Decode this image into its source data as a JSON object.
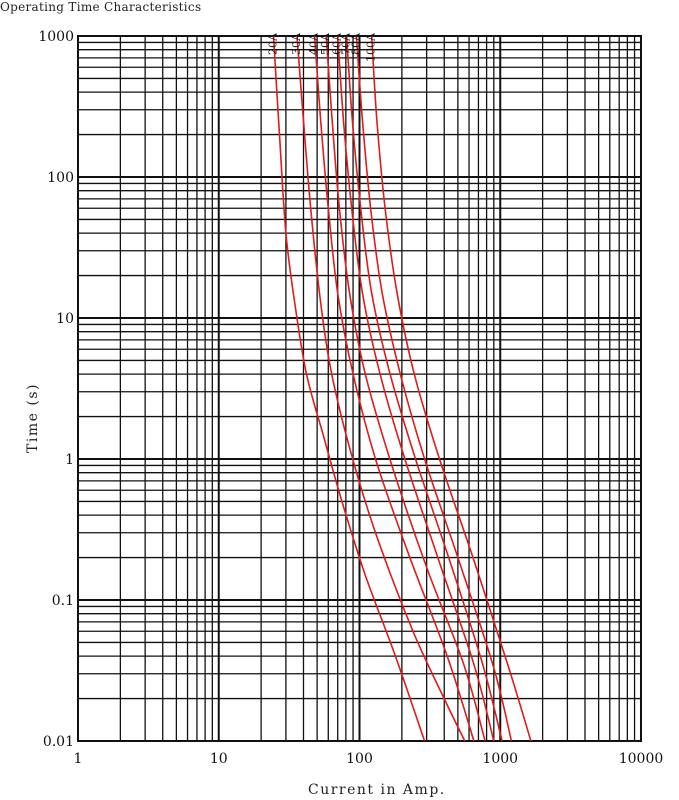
{
  "chart_data": {
    "type": "line",
    "title": "Operating Time Characteristics",
    "xlabel": "Current in Amp.",
    "ylabel": "Time (s)",
    "x_scale": "log",
    "y_scale": "log",
    "xlim": [
      1,
      10000
    ],
    "ylim": [
      0.01,
      1000
    ],
    "x_tick_labels": [
      "1",
      "10",
      "100",
      "1000",
      "10000"
    ],
    "y_tick_labels": [
      "0.01",
      "0.1",
      "1",
      "10",
      "100",
      "1000"
    ],
    "grid": true,
    "line_color": "#e11b1b",
    "series": [
      {
        "name": "20A",
        "points": [
          [
            24.5,
            1000
          ],
          [
            27,
            200
          ],
          [
            30,
            40
          ],
          [
            35,
            12
          ],
          [
            42,
            4
          ],
          [
            55,
            1.5
          ],
          [
            75,
            0.5
          ],
          [
            110,
            0.15
          ],
          [
            180,
            0.04
          ],
          [
            290,
            0.01
          ]
        ]
      },
      {
        "name": "30A",
        "points": [
          [
            36,
            1000
          ],
          [
            40,
            250
          ],
          [
            45,
            60
          ],
          [
            52,
            15
          ],
          [
            62,
            4.5
          ],
          [
            85,
            1.2
          ],
          [
            130,
            0.3
          ],
          [
            240,
            0.06
          ],
          [
            420,
            0.018
          ],
          [
            560,
            0.01
          ]
        ]
      },
      {
        "name": "40A",
        "points": [
          [
            48,
            1000
          ],
          [
            53,
            250
          ],
          [
            60,
            60
          ],
          [
            70,
            15
          ],
          [
            90,
            4
          ],
          [
            130,
            1
          ],
          [
            220,
            0.22
          ],
          [
            420,
            0.04
          ],
          [
            650,
            0.01
          ]
        ]
      },
      {
        "name": "50A",
        "points": [
          [
            58,
            1000
          ],
          [
            64,
            250
          ],
          [
            72,
            60
          ],
          [
            85,
            15
          ],
          [
            110,
            4
          ],
          [
            170,
            0.9
          ],
          [
            300,
            0.17
          ],
          [
            550,
            0.035
          ],
          [
            780,
            0.01
          ]
        ]
      },
      {
        "name": "60A",
        "points": [
          [
            70,
            1000
          ],
          [
            77,
            250
          ],
          [
            88,
            60
          ],
          [
            105,
            15
          ],
          [
            140,
            4
          ],
          [
            210,
            1
          ],
          [
            360,
            0.2
          ],
          [
            650,
            0.035
          ],
          [
            900,
            0.01
          ]
        ]
      },
      {
        "name": "70A",
        "points": [
          [
            81,
            1000
          ],
          [
            89,
            250
          ],
          [
            102,
            60
          ],
          [
            122,
            15
          ],
          [
            165,
            4
          ],
          [
            250,
            1
          ],
          [
            430,
            0.2
          ],
          [
            750,
            0.035
          ],
          [
            1030,
            0.01
          ]
        ]
      },
      {
        "name": "80A",
        "points": [
          [
            95,
            1000
          ],
          [
            105,
            250
          ],
          [
            120,
            60
          ],
          [
            145,
            15
          ],
          [
            195,
            4
          ],
          [
            290,
            1
          ],
          [
            500,
            0.2
          ],
          [
            900,
            0.033
          ],
          [
            1200,
            0.01
          ]
        ]
      },
      {
        "name": "100A",
        "points": [
          [
            122,
            1000
          ],
          [
            133,
            250
          ],
          [
            152,
            60
          ],
          [
            185,
            15
          ],
          [
            245,
            4
          ],
          [
            370,
            1
          ],
          [
            640,
            0.2
          ],
          [
            1150,
            0.033
          ],
          [
            1650,
            0.01
          ]
        ]
      }
    ]
  }
}
